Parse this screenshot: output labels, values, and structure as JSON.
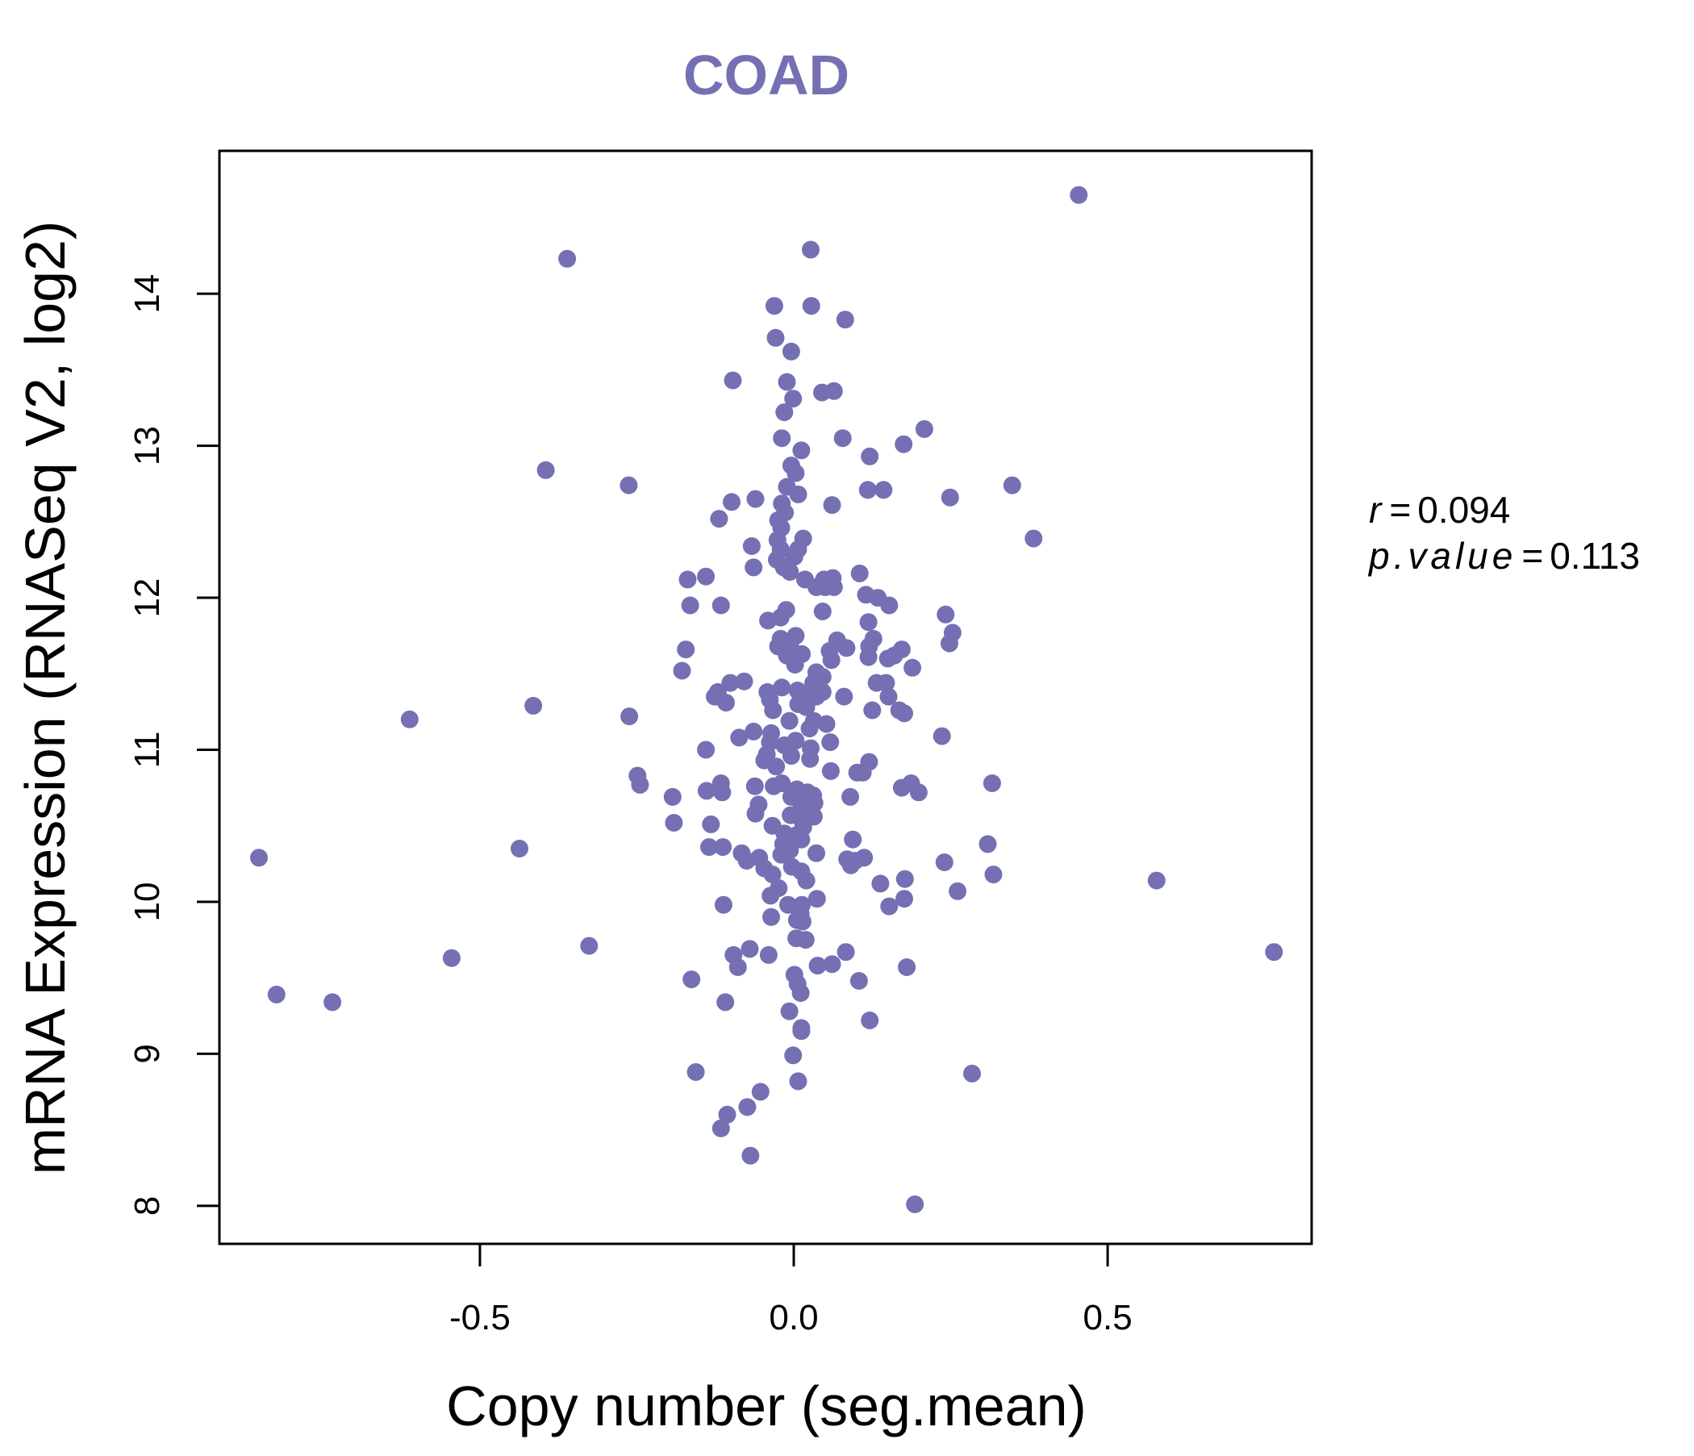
{
  "colors": {
    "accent": "#7570b3",
    "axis": "#000000",
    "background": "#ffffff"
  },
  "chart_data": {
    "type": "scatter",
    "title": "COAD",
    "xlabel": "Copy number (seg.mean)",
    "ylabel": "mRNA Expression (RNASeq V2, log2)",
    "xlim": [
      -0.915,
      0.825
    ],
    "ylim": [
      7.75,
      14.94
    ],
    "xticks": [
      -0.5,
      0.0,
      0.5
    ],
    "xtick_labels": [
      "-0.5",
      "0.0",
      "0.5"
    ],
    "yticks": [
      8,
      9,
      10,
      11,
      12,
      13,
      14
    ],
    "ytick_labels": [
      "8",
      "9",
      "10",
      "11",
      "12",
      "13",
      "14"
    ],
    "grid": false,
    "annotations": {
      "r_symbol": "r",
      "r_value": "0.094",
      "p_symbol": "p.value",
      "p_value": "0.113"
    },
    "points": [
      [
        0.454,
        14.65
      ],
      [
        -0.361,
        14.23
      ],
      [
        0.027,
        14.29
      ],
      [
        -0.031,
        13.92
      ],
      [
        0.028,
        13.92
      ],
      [
        0.082,
        13.83
      ],
      [
        -0.029,
        13.71
      ],
      [
        -0.004,
        13.62
      ],
      [
        -0.097,
        13.43
      ],
      [
        0.045,
        13.35
      ],
      [
        0.064,
        13.36
      ],
      [
        -0.011,
        13.42
      ],
      [
        -0.001,
        13.31
      ],
      [
        -0.015,
        13.22
      ],
      [
        0.208,
        13.11
      ],
      [
        0.078,
        13.05
      ],
      [
        0.175,
        13.01
      ],
      [
        -0.019,
        13.05
      ],
      [
        0.012,
        12.97
      ],
      [
        0.121,
        12.93
      ],
      [
        -0.395,
        12.84
      ],
      [
        -0.004,
        12.87
      ],
      [
        0.003,
        12.82
      ],
      [
        -0.263,
        12.74
      ],
      [
        0.348,
        12.74
      ],
      [
        -0.011,
        12.73
      ],
      [
        0.118,
        12.71
      ],
      [
        0.143,
        12.71
      ],
      [
        0.007,
        12.68
      ],
      [
        0.249,
        12.66
      ],
      [
        -0.061,
        12.65
      ],
      [
        -0.099,
        12.63
      ],
      [
        -0.019,
        12.62
      ],
      [
        0.061,
        12.61
      ],
      [
        -0.014,
        12.56
      ],
      [
        -0.119,
        12.52
      ],
      [
        -0.025,
        12.51
      ],
      [
        -0.02,
        12.46
      ],
      [
        0.382,
        12.39
      ],
      [
        0.015,
        12.39
      ],
      [
        -0.067,
        12.34
      ],
      [
        -0.026,
        12.38
      ],
      [
        -0.021,
        12.32
      ],
      [
        0.007,
        12.32
      ],
      [
        0.001,
        12.27
      ],
      [
        -0.027,
        12.25
      ],
      [
        -0.064,
        12.2
      ],
      [
        -0.006,
        12.17
      ],
      [
        -0.016,
        12.2
      ],
      [
        0.105,
        12.16
      ],
      [
        -0.14,
        12.14
      ],
      [
        -0.169,
        12.12
      ],
      [
        0.018,
        12.12
      ],
      [
        0.048,
        12.12
      ],
      [
        0.062,
        12.13
      ],
      [
        0.036,
        12.07
      ],
      [
        0.05,
        12.07
      ],
      [
        0.064,
        12.07
      ],
      [
        0.115,
        12.02
      ],
      [
        0.134,
        12.0
      ],
      [
        -0.165,
        11.95
      ],
      [
        -0.116,
        11.95
      ],
      [
        0.152,
        11.95
      ],
      [
        -0.012,
        11.92
      ],
      [
        0.046,
        11.91
      ],
      [
        0.242,
        11.89
      ],
      [
        -0.021,
        11.87
      ],
      [
        -0.041,
        11.85
      ],
      [
        0.119,
        11.84
      ],
      [
        0.253,
        11.77
      ],
      [
        0.003,
        11.75
      ],
      [
        -0.021,
        11.73
      ],
      [
        0.069,
        11.72
      ],
      [
        0.127,
        11.73
      ],
      [
        0.248,
        11.7
      ],
      [
        0.12,
        11.68
      ],
      [
        0.084,
        11.67
      ],
      [
        -0.005,
        11.67
      ],
      [
        -0.025,
        11.68
      ],
      [
        0.057,
        11.65
      ],
      [
        0.172,
        11.66
      ],
      [
        -0.172,
        11.66
      ],
      [
        -0.011,
        11.62
      ],
      [
        0.013,
        11.63
      ],
      [
        0.16,
        11.62
      ],
      [
        0.15,
        11.6
      ],
      [
        0.119,
        11.61
      ],
      [
        0.06,
        11.59
      ],
      [
        0.002,
        11.56
      ],
      [
        0.189,
        11.54
      ],
      [
        -0.178,
        11.52
      ],
      [
        0.036,
        11.51
      ],
      [
        0.046,
        11.48
      ],
      [
        -0.079,
        11.45
      ],
      [
        -0.101,
        11.44
      ],
      [
        0.031,
        11.44
      ],
      [
        0.132,
        11.44
      ],
      [
        0.147,
        11.44
      ],
      [
        0.036,
        11.41
      ],
      [
        -0.019,
        11.41
      ],
      [
        0.006,
        11.39
      ],
      [
        -0.042,
        11.38
      ],
      [
        -0.121,
        11.38
      ],
      [
        0.046,
        11.38
      ],
      [
        -0.126,
        11.35
      ],
      [
        0.036,
        11.35
      ],
      [
        0.017,
        11.35
      ],
      [
        0.151,
        11.35
      ],
      [
        0.08,
        11.35
      ],
      [
        -0.038,
        11.33
      ],
      [
        -0.108,
        11.31
      ],
      [
        0.007,
        11.3
      ],
      [
        0.02,
        11.28
      ],
      [
        -0.033,
        11.26
      ],
      [
        0.125,
        11.26
      ],
      [
        0.168,
        11.26
      ],
      [
        -0.415,
        11.29
      ],
      [
        0.176,
        11.24
      ],
      [
        -0.262,
        11.22
      ],
      [
        -0.612,
        11.2
      ],
      [
        -0.007,
        11.19
      ],
      [
        0.032,
        11.19
      ],
      [
        0.052,
        11.17
      ],
      [
        0.025,
        11.14
      ],
      [
        -0.064,
        11.12
      ],
      [
        -0.036,
        11.11
      ],
      [
        0.236,
        11.09
      ],
      [
        -0.087,
        11.08
      ],
      [
        -0.038,
        11.05
      ],
      [
        0.003,
        11.06
      ],
      [
        0.058,
        11.05
      ],
      [
        -0.015,
        11.03
      ],
      [
        0.027,
        11.01
      ],
      [
        -0.14,
        11.0
      ],
      [
        -0.043,
        10.97
      ],
      [
        -0.004,
        10.96
      ],
      [
        0.026,
        10.94
      ],
      [
        -0.047,
        10.93
      ],
      [
        0.12,
        10.92
      ],
      [
        -0.028,
        10.89
      ],
      [
        0.059,
        10.86
      ],
      [
        0.101,
        10.85
      ],
      [
        0.11,
        10.85
      ],
      [
        -0.249,
        10.83
      ],
      [
        -0.245,
        10.77
      ],
      [
        -0.019,
        10.78
      ],
      [
        0.316,
        10.78
      ],
      [
        -0.116,
        10.78
      ],
      [
        0.172,
        10.75
      ],
      [
        0.187,
        10.78
      ],
      [
        -0.062,
        10.76
      ],
      [
        -0.032,
        10.76
      ],
      [
        0.005,
        10.74
      ],
      [
        0.022,
        10.72
      ],
      [
        -0.139,
        10.73
      ],
      [
        -0.114,
        10.72
      ],
      [
        0.199,
        10.72
      ],
      [
        0.031,
        10.7
      ],
      [
        -0.193,
        10.69
      ],
      [
        -0.004,
        10.69
      ],
      [
        0.09,
        10.69
      ],
      [
        0.033,
        10.65
      ],
      [
        0.012,
        10.64
      ],
      [
        -0.056,
        10.64
      ],
      [
        -0.061,
        10.58
      ],
      [
        0.02,
        10.59
      ],
      [
        -0.005,
        10.57
      ],
      [
        0.032,
        10.56
      ],
      [
        0.011,
        10.55
      ],
      [
        -0.191,
        10.52
      ],
      [
        -0.132,
        10.51
      ],
      [
        -0.034,
        10.5
      ],
      [
        0.015,
        10.49
      ],
      [
        -0.015,
        10.45
      ],
      [
        0.005,
        10.44
      ],
      [
        0.094,
        10.41
      ],
      [
        0.012,
        10.41
      ],
      [
        0.309,
        10.38
      ],
      [
        -0.017,
        10.38
      ],
      [
        -0.135,
        10.36
      ],
      [
        -0.113,
        10.36
      ],
      [
        -0.437,
        10.35
      ],
      [
        -0.006,
        10.34
      ],
      [
        -0.083,
        10.32
      ],
      [
        0.036,
        10.32
      ],
      [
        -0.02,
        10.31
      ],
      [
        0.085,
        10.28
      ],
      [
        0.112,
        10.29
      ],
      [
        -0.055,
        10.29
      ],
      [
        -0.075,
        10.27
      ],
      [
        -0.852,
        10.29
      ],
      [
        0.098,
        10.27
      ],
      [
        0.24,
        10.26
      ],
      [
        0.091,
        10.24
      ],
      [
        -0.047,
        10.22
      ],
      [
        -0.003,
        10.23
      ],
      [
        0.012,
        10.2
      ],
      [
        -0.034,
        10.18
      ],
      [
        0.318,
        10.18
      ],
      [
        0.578,
        10.14
      ],
      [
        0.177,
        10.15
      ],
      [
        0.02,
        10.14
      ],
      [
        0.138,
        10.12
      ],
      [
        -0.024,
        10.09
      ],
      [
        0.261,
        10.07
      ],
      [
        -0.037,
        10.04
      ],
      [
        0.176,
        10.02
      ],
      [
        0.037,
        10.02
      ],
      [
        -0.112,
        9.98
      ],
      [
        -0.009,
        9.98
      ],
      [
        0.013,
        9.98
      ],
      [
        0.152,
        9.97
      ],
      [
        0.011,
        9.92
      ],
      [
        -0.036,
        9.9
      ],
      [
        0.005,
        9.88
      ],
      [
        0.014,
        9.87
      ],
      [
        0.004,
        9.76
      ],
      [
        0.019,
        9.75
      ],
      [
        -0.326,
        9.71
      ],
      [
        -0.07,
        9.69
      ],
      [
        0.083,
        9.67
      ],
      [
        0.765,
        9.67
      ],
      [
        -0.096,
        9.65
      ],
      [
        -0.04,
        9.65
      ],
      [
        -0.545,
        9.63
      ],
      [
        0.061,
        9.59
      ],
      [
        0.038,
        9.58
      ],
      [
        0.18,
        9.57
      ],
      [
        -0.089,
        9.57
      ],
      [
        0.001,
        9.52
      ],
      [
        0.104,
        9.48
      ],
      [
        -0.163,
        9.49
      ],
      [
        0.006,
        9.46
      ],
      [
        0.011,
        9.4
      ],
      [
        -0.109,
        9.34
      ],
      [
        -0.824,
        9.39
      ],
      [
        -0.735,
        9.34
      ],
      [
        -0.007,
        9.28
      ],
      [
        0.121,
        9.22
      ],
      [
        0.012,
        9.17
      ],
      [
        0.012,
        9.15
      ],
      [
        -0.001,
        8.99
      ],
      [
        -0.156,
        8.88
      ],
      [
        0.284,
        8.87
      ],
      [
        0.007,
        8.82
      ],
      [
        -0.053,
        8.75
      ],
      [
        -0.074,
        8.65
      ],
      [
        -0.106,
        8.6
      ],
      [
        -0.116,
        8.51
      ],
      [
        -0.069,
        8.33
      ],
      [
        0.193,
        8.01
      ]
    ]
  }
}
